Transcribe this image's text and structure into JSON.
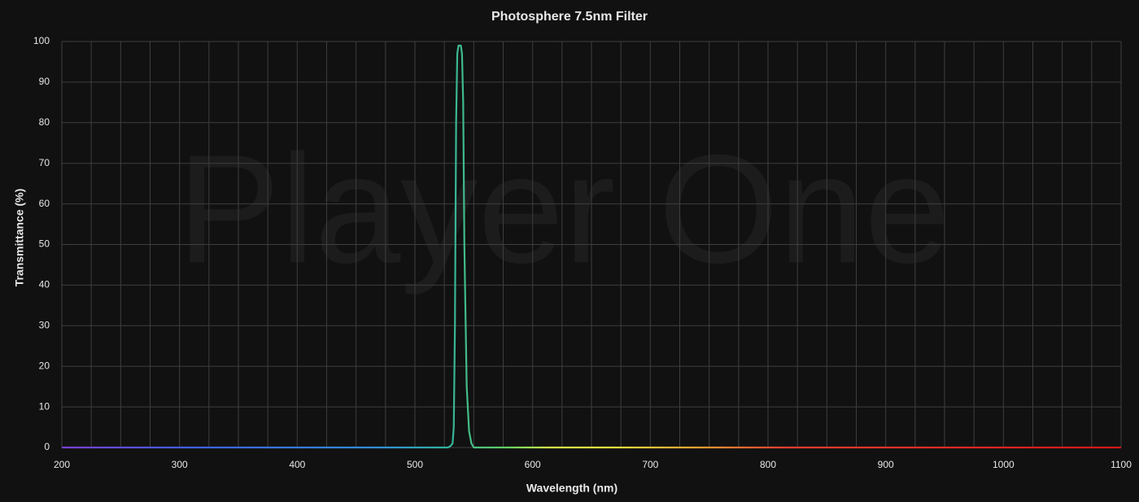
{
  "chart_data": {
    "type": "line",
    "title": "Photosphere 7.5nm Filter",
    "watermark": "Player One",
    "x_label": "Wavelength (nm)",
    "y_label": "Transmittance (%)",
    "xlim": [
      200,
      1100
    ],
    "ylim": [
      0,
      100
    ],
    "xticks": [
      200,
      300,
      400,
      500,
      600,
      700,
      800,
      900,
      1000,
      1100
    ],
    "minor_xticks": [
      225,
      250,
      275,
      325,
      350,
      375,
      425,
      450,
      475,
      525,
      550,
      575,
      625,
      650,
      675,
      725,
      750,
      775,
      825,
      850,
      875,
      925,
      950,
      975,
      1025,
      1050,
      1075
    ],
    "yticks": [
      0,
      10,
      20,
      30,
      40,
      50,
      60,
      70,
      80,
      90,
      100
    ],
    "grid": true,
    "series": [
      {
        "name": "Photosphere 7.5nm",
        "color": "#d2f04a",
        "x": [
          200,
          300,
          400,
          500,
          528,
          530,
          532,
          533,
          534,
          535,
          536,
          537,
          539,
          540,
          541,
          542,
          544,
          546,
          548,
          550,
          600,
          700,
          800,
          900,
          1000,
          1100
        ],
        "values": [
          0,
          0,
          0,
          0,
          0,
          0.3,
          1,
          5,
          30,
          80,
          97,
          99,
          99,
          97,
          85,
          50,
          15,
          4,
          1,
          0,
          0,
          0,
          0,
          0,
          0,
          0
        ]
      }
    ]
  }
}
